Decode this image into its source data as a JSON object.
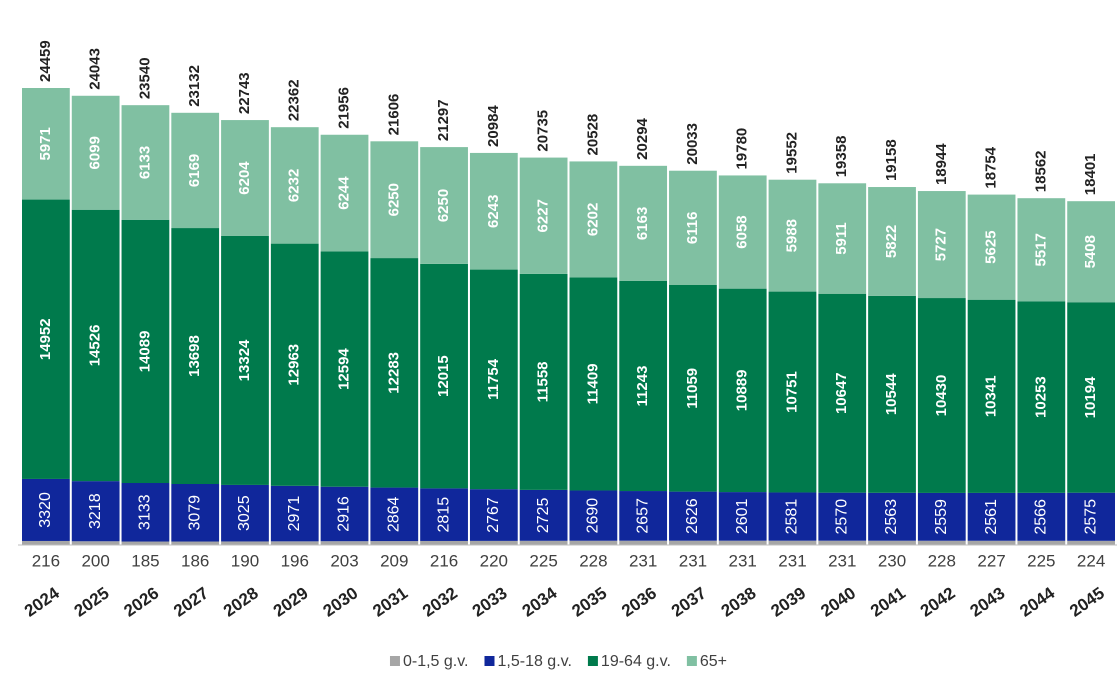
{
  "chart_data": {
    "type": "stacked-bar",
    "categories": [
      "2024",
      "2025",
      "2026",
      "2027",
      "2028",
      "2029",
      "2030",
      "2031",
      "2032",
      "2033",
      "2034",
      "2035",
      "2036",
      "2037",
      "2038",
      "2039",
      "2040",
      "2041",
      "2042",
      "2043",
      "2044",
      "2045"
    ],
    "series": [
      {
        "name": "0-1,5 g.v.",
        "color": "#a6a6a6",
        "values": [
          216,
          200,
          185,
          186,
          190,
          196,
          203,
          209,
          216,
          220,
          225,
          228,
          231,
          231,
          231,
          231,
          231,
          230,
          228,
          227,
          225,
          224
        ]
      },
      {
        "name": "1,5-18 g.v.",
        "color": "#10279b",
        "values": [
          3320,
          3218,
          3133,
          3079,
          3025,
          2971,
          2916,
          2864,
          2815,
          2767,
          2725,
          2690,
          2657,
          2626,
          2601,
          2581,
          2570,
          2563,
          2559,
          2561,
          2566,
          2575
        ]
      },
      {
        "name": "19-64 g.v.",
        "color": "#007a4c",
        "values": [
          14952,
          14526,
          14089,
          13698,
          13324,
          12963,
          12594,
          12283,
          12015,
          11754,
          11558,
          11409,
          11243,
          11059,
          10889,
          10751,
          10647,
          10544,
          10430,
          10341,
          10253,
          10194
        ]
      },
      {
        "name": "65+",
        "color": "#80c0a2",
        "values": [
          5971,
          6099,
          6133,
          6169,
          6204,
          6232,
          6244,
          6250,
          6250,
          6243,
          6227,
          6202,
          6163,
          6116,
          6058,
          5988,
          5911,
          5822,
          5727,
          5625,
          5517,
          5408
        ]
      }
    ],
    "totals": [
      24459,
      24043,
      23540,
      23132,
      22743,
      22362,
      21956,
      21606,
      21297,
      20984,
      20735,
      20528,
      20294,
      20033,
      19780,
      19552,
      19358,
      19158,
      18944,
      18754,
      18562,
      18401
    ],
    "legend": "bottom"
  }
}
